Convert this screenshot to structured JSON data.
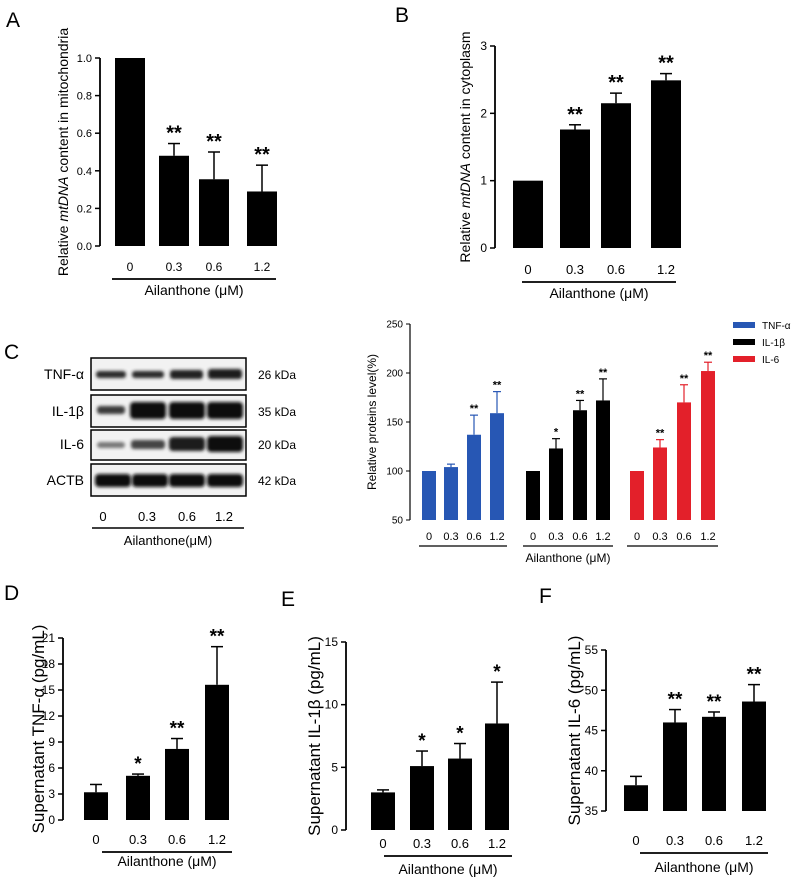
{
  "panels": {
    "a": "A",
    "b": "B",
    "c": "C",
    "d": "D",
    "e": "E",
    "f": "F"
  },
  "western_blot": {
    "rows": [
      {
        "name": "TNF-α",
        "size": "26 kDa"
      },
      {
        "name": "IL-1β",
        "size": "35 kDa"
      },
      {
        "name": "IL-6",
        "size": "20 kDa"
      },
      {
        "name": "ACTB",
        "size": "42 kDa"
      }
    ],
    "lanes": [
      "0",
      "0.3",
      "0.6",
      "1.2"
    ],
    "xlabel": "Ailanthone(μM)"
  },
  "chart_data": [
    {
      "id": "A",
      "type": "bar",
      "categories": [
        "0",
        "0.3",
        "0.6",
        "1.2"
      ],
      "values": [
        1.0,
        0.48,
        0.355,
        0.29
      ],
      "errors": [
        0,
        0.065,
        0.145,
        0.14
      ],
      "significance": [
        "",
        "**",
        "**",
        "**"
      ],
      "ylabel": "Relative mtDNA content in mitochondria",
      "ylabel_parts": [
        "Relative ",
        "mtDNA",
        " content in mitochondria"
      ],
      "xlabel": "Ailanthone (μM)",
      "ylim": [
        0,
        1.0
      ],
      "yticks": [
        "0.0",
        "0.2",
        "0.4",
        "0.6",
        "0.8",
        "1.0"
      ],
      "color": "#000000"
    },
    {
      "id": "B",
      "type": "bar",
      "categories": [
        "0",
        "0.3",
        "0.6",
        "1.2"
      ],
      "values": [
        1.0,
        1.76,
        2.15,
        2.49
      ],
      "errors": [
        0,
        0.07,
        0.15,
        0.1
      ],
      "significance": [
        "",
        "**",
        "**",
        "**"
      ],
      "ylabel": "Relative mtDNA content in cytoplasm",
      "ylabel_parts": [
        "Relative ",
        "mtDNA",
        " content in cytoplasm"
      ],
      "xlabel": "Ailanthone (μM)",
      "ylim": [
        0,
        3
      ],
      "yticks": [
        "0",
        "1",
        "2",
        "3"
      ],
      "color": "#000000"
    },
    {
      "id": "C",
      "type": "bar",
      "categories": [
        "0",
        "0.3",
        "0.6",
        "1.2"
      ],
      "series": [
        {
          "name": "TNF-α",
          "color": "#2757b4",
          "values": [
            100,
            104,
            137,
            159
          ],
          "errors": [
            0,
            3,
            20,
            22
          ],
          "significance": [
            "",
            "",
            "**",
            "**"
          ]
        },
        {
          "name": "IL-1β",
          "color": "#000000",
          "values": [
            100,
            123,
            162,
            172
          ],
          "errors": [
            0,
            10,
            10,
            22
          ],
          "significance": [
            "",
            "*",
            "**",
            "**"
          ]
        },
        {
          "name": "IL-6",
          "color": "#e3202a",
          "values": [
            100,
            124,
            170,
            202
          ],
          "errors": [
            0,
            8,
            18,
            9
          ],
          "significance": [
            "",
            "**",
            "**",
            "**"
          ]
        }
      ],
      "ylabel": "Relative proteins level(%)",
      "xlabel": "Ailanthone (μM)",
      "ylim": [
        50,
        250
      ],
      "yticks": [
        "50",
        "100",
        "150",
        "200",
        "250"
      ],
      "legend": "top-right"
    },
    {
      "id": "D",
      "type": "bar",
      "categories": [
        "0",
        "0.3",
        "0.6",
        "1.2"
      ],
      "values": [
        3.2,
        5.1,
        8.2,
        15.6
      ],
      "errors": [
        0.9,
        0.2,
        1.2,
        4.4
      ],
      "significance": [
        "",
        "*",
        "**",
        "**"
      ],
      "ylabel": "Supernatant TNF-α (pg/mL)",
      "xlabel": "Ailanthone (μM)",
      "ylim": [
        0,
        21
      ],
      "yticks": [
        "0",
        "3",
        "6",
        "9",
        "12",
        "15",
        "18",
        "21"
      ],
      "color": "#000000"
    },
    {
      "id": "E",
      "type": "bar",
      "categories": [
        "0",
        "0.3",
        "0.6",
        "1.2"
      ],
      "values": [
        3.0,
        5.1,
        5.7,
        8.5
      ],
      "errors": [
        0.2,
        1.2,
        1.2,
        3.3
      ],
      "significance": [
        "",
        "*",
        "*",
        "*"
      ],
      "ylabel": "Supernatant IL-1β (pg/mL)",
      "xlabel": "Ailanthone (μM)",
      "ylim": [
        0,
        15
      ],
      "yticks": [
        "0",
        "5",
        "10",
        "15"
      ],
      "color": "#000000"
    },
    {
      "id": "F",
      "type": "bar",
      "categories": [
        "0",
        "0.3",
        "0.6",
        "1.2"
      ],
      "values": [
        38.2,
        46.0,
        46.7,
        48.6
      ],
      "errors": [
        1.1,
        1.6,
        0.6,
        2.1
      ],
      "significance": [
        "",
        "**",
        "**",
        "**"
      ],
      "ylabel": "Supernatant IL-6 (pg/mL)",
      "xlabel": "Ailanthone (μM)",
      "ylim": [
        35,
        55
      ],
      "yticks": [
        "35",
        "40",
        "45",
        "50",
        "55"
      ],
      "color": "#000000"
    }
  ]
}
